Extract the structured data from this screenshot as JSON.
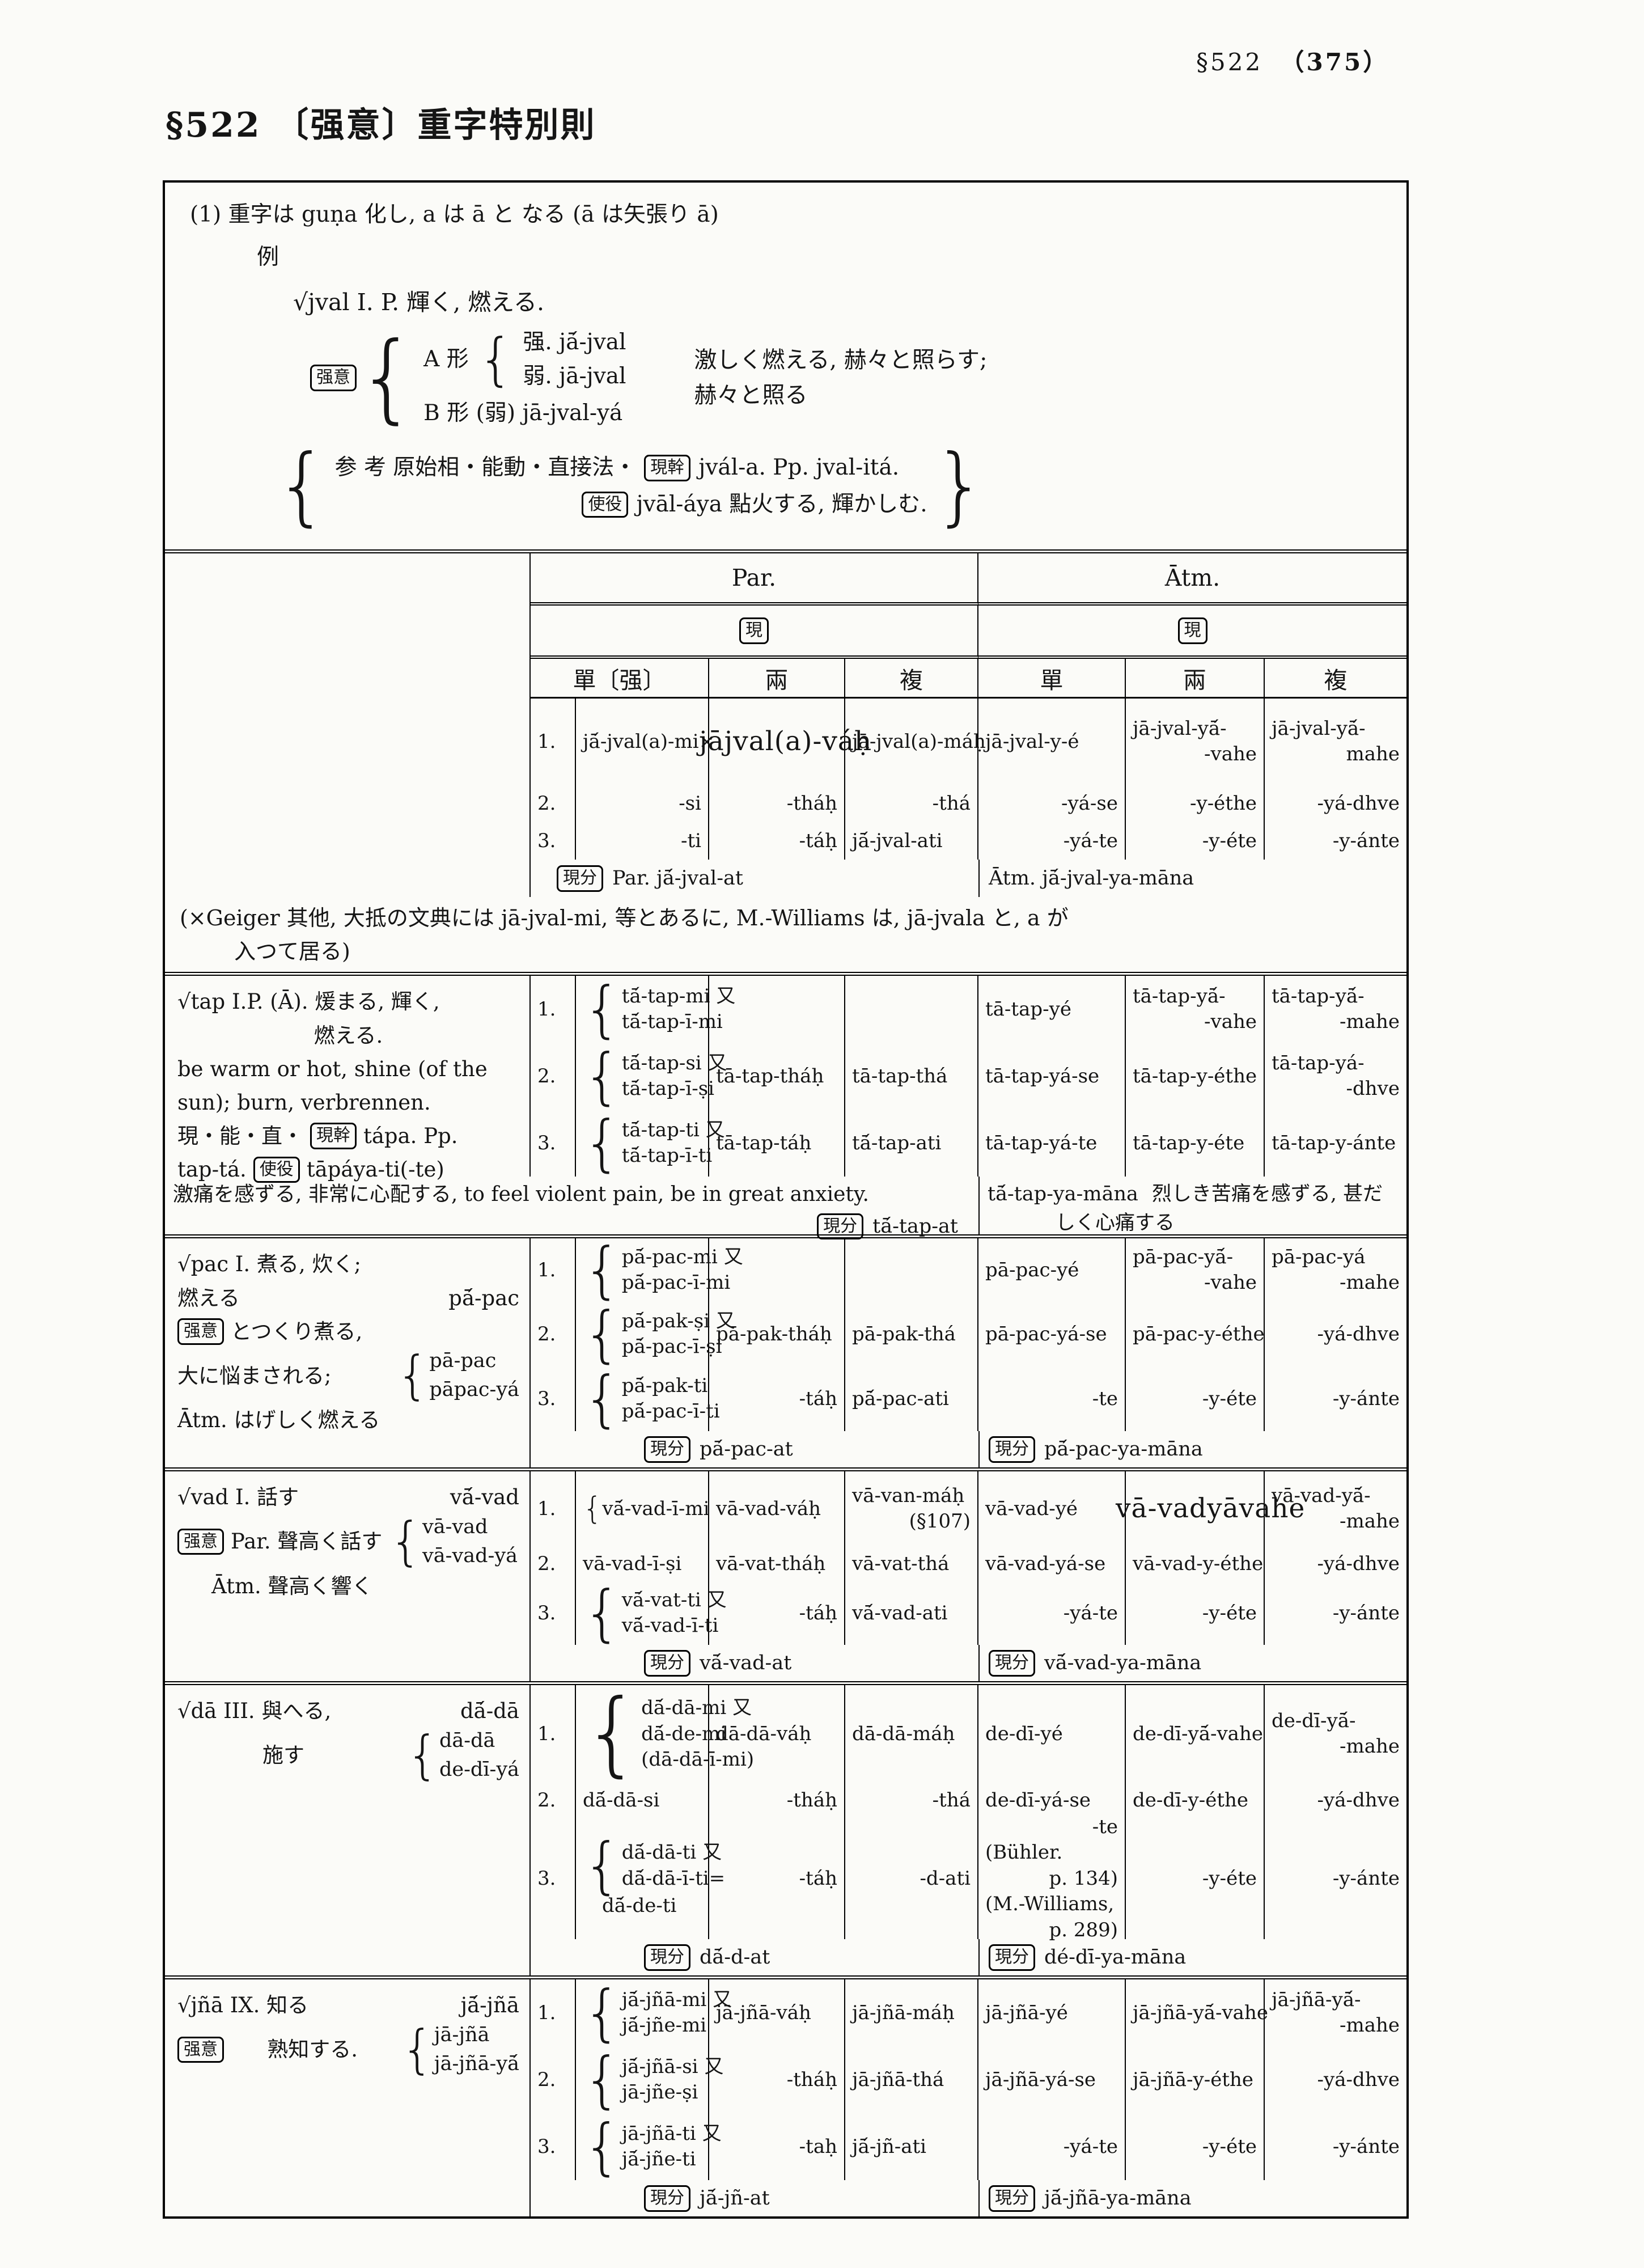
{
  "page": {
    "header_sec": "§522",
    "header_page": "（375）",
    "title": "§522 〔强意〕重字特別則"
  },
  "intro": {
    "line1": "(1) 重字は guṇa 化し, a は ā と なる (ā は矢張り ā)",
    "rei": "例",
    "jval_line": "√jval I. P. 輝く, 燃える.",
    "kyoi": "强意",
    "a_label": "A 形",
    "a_strong": "强. jā́-jval",
    "a_weak": "弱. jā-jval",
    "b_line": "B 形 (弱) jā-jval-yá",
    "desc1": "激しく燃える, 赫々と照らす;",
    "desc2": "赫々と照る",
    "sanko": "参 考 原始相・能動・直接法・",
    "genkan": "現幹",
    "genkan_text": "jvál-a. Pp. jval-itá.",
    "shieki": "使役",
    "shieki_text": "jvāl-áya 點火する, 輝かしむ."
  },
  "table": {
    "headers": {
      "par": "Par.",
      "atm": "Ātm.",
      "tense": "現",
      "cols": [
        "單〔强〕",
        "兩",
        "複",
        "單",
        "兩",
        "複"
      ]
    },
    "blocks": [
      {
        "id": "jval",
        "left": [],
        "rows": [
          {
            "num": "1.",
            "cells": [
              "jā́-jval(a)-mi×",
              {
                "big": "jājval(a)-váḥ"
              },
              "jā-jval(a)-máḥ",
              "jā-jval-y-é",
              [
                "jā-jval-yā́-",
                "-vahe"
              ],
              [
                "jā-jval-yā́-",
                [
                  "R",
                  "mahe"
                ]
              ]
            ]
          },
          {
            "num": "2.",
            "cells": [
              "-si",
              "-tháḥ",
              "-thá",
              "-yá-se",
              "-y-éthe",
              "-yá-dhve"
            ]
          },
          {
            "num": "3.",
            "cells": [
              "-ti",
              "-táḥ",
              "jā́-jval-ati",
              "-yá-te",
              "-y-éte",
              "-y-ánte"
            ]
          }
        ],
        "footer": {
          "box": "現分",
          "par": "Par. jā́-jval-at",
          "atm": "Ātm. jā́-jval-ya-māna"
        },
        "note": [
          "(×Geiger 其他, 大抵の文典には jā-jval-mi, 等とあるに, M.-Williams は, jā-jvala と, a が",
          "入つて居る)"
        ]
      },
      {
        "id": "tap",
        "left": [
          {
            "segs": [
              "√tap I.P. (Ā). 煖まる, 輝く,"
            ]
          },
          {
            "segs": [
              "燃える."
            ],
            "center": true
          },
          {
            "segs": [
              "be warm or hot, shine (of the"
            ]
          },
          {
            "segs": [
              "sun); burn, verbrennen."
            ]
          },
          {
            "segs": [
              "現・能・直・",
              {
                "box": "現幹"
              },
              " tápa. Pp."
            ]
          },
          {
            "segs": [
              "tap-tá. ",
              {
                "box": "使役"
              },
              " tāpáya-ti(-te)"
            ]
          }
        ],
        "rows": [
          {
            "num": "1.",
            "cells": [
              {
                "brace": [
                  "tā́-tap-mi 又",
                  "tā́-tap-ī-mi"
                ]
              },
              "",
              "",
              "tā-tap-yé",
              [
                "tā-tap-yā́-",
                "-vahe"
              ],
              [
                "tā-tap-yā́-",
                "-mahe"
              ]
            ]
          },
          {
            "num": "2.",
            "cells": [
              {
                "brace": [
                  "tā́-tap-si 又",
                  "tā́-tap-ī-ṣi"
                ]
              },
              "tā-tap-tháḥ",
              "tā-tap-thá",
              "tā-tap-yá-se",
              "tā-tap-y-éthe",
              [
                "tā-tap-yá-",
                "-dhve"
              ]
            ]
          },
          {
            "num": "3.",
            "cells": [
              {
                "brace": [
                  "tā́-tap-ti 又",
                  "tā́-tap-ī-ti"
                ]
              },
              "tā-tap-táḥ",
              "tā́-tap-ati",
              "tā-tap-yá-te",
              "tā-tap-y-éte",
              "tā-tap-y-ánte"
            ]
          }
        ],
        "footer": {
          "wide_left": "激痛を感ずる, 非常に心配する, to feel violent pain, be in great anxiety.",
          "box": "現分",
          "par": "tā́-tap-at",
          "atm": "tā́-tap-ya-māna",
          "atm_note": [
            "烈しき苦痛を感ずる, 甚だ",
            "しく心痛する"
          ]
        }
      },
      {
        "id": "pac",
        "left": [
          {
            "segs": [
              "√pac I. 煮る, 炊く;"
            ]
          },
          {
            "segs": [
              "燃える",
              "pā́-pac"
            ],
            "spread": true
          },
          {
            "segs": [
              {
                "box": "强意"
              },
              "とつくり煮る,"
            ]
          },
          {
            "segs": [
              "大に悩まされる;",
              {
                "pair": [
                  "pā-pac",
                  "pāpac-yá"
                ]
              }
            ],
            "spread": true
          },
          {
            "segs": [
              "Ātm. はげしく燃える"
            ]
          }
        ],
        "rows": [
          {
            "num": "1.",
            "cells": [
              {
                "brace": [
                  "pā́-pac-mi 又",
                  "pā́-pac-ī-mi"
                ]
              },
              "",
              "",
              "pā-pac-yé",
              [
                "pā-pac-yā́-",
                "-vahe"
              ],
              [
                "pā-pac-yá",
                [
                  "R",
                  "-mahe"
                ]
              ]
            ]
          },
          {
            "num": "2.",
            "cells": [
              {
                "brace": [
                  "pā́-pak-ṣi 又",
                  "pā́-pac-ī-ṣi"
                ]
              },
              "pā-pak-tháḥ",
              "pā-pak-thá",
              "pā-pac-yá-se",
              "pā-pac-y-éthe",
              "-yá-dhve"
            ]
          },
          {
            "num": "3.",
            "cells": [
              {
                "brace": [
                  "pā́-pak-ti",
                  "pā́-pac-ī-ti"
                ]
              },
              "-táḥ",
              "pā́-pac-ati",
              "-te",
              "-y-éte",
              "-y-ánte"
            ]
          }
        ],
        "footer": {
          "box": "現分",
          "par": "pā́-pac-at",
          "box2": "現分",
          "atm": "pā́-pac-ya-māna"
        }
      },
      {
        "id": "vad",
        "left": [
          {
            "segs": [
              "√vad I. 話す",
              "vā́-vad"
            ],
            "spread": true
          },
          {
            "segs": [
              {
                "box": "强意"
              },
              " Par. 聲高く話す",
              {
                "pair": [
                  "vā-vad",
                  "vā-vad-yá"
                ]
              }
            ]
          },
          {
            "segs": [
              "Ātm. 聲高く響く"
            ],
            "indent": 60
          }
        ],
        "rows": [
          {
            "num": "1.",
            "cells": [
              {
                "brace": [
                  "vā́-vad-ī-mi"
                ]
              },
              "vā-vad-váḥ",
              [
                "vā-van-máḥ",
                [
                  "R",
                  "(§107)"
                ]
              ],
              "vā-vad-yé",
              {
                "big": "vā-vadyāvahe"
              },
              [
                "vā-vad-yā́-",
                [
                  "R",
                  "-mahe"
                ]
              ]
            ]
          },
          {
            "num": "2.",
            "cells": [
              "vā-vad-ī-ṣi",
              "vā-vat-tháḥ",
              "vā-vat-thá",
              "vā-vad-yá-se",
              "vā-vad-y-éthe",
              "-yá-dhve"
            ]
          },
          {
            "num": "3.",
            "cells": [
              {
                "brace": [
                  "vā́-vat-ti 又",
                  "vā́-vad-ī-ti"
                ]
              },
              "-táḥ",
              "vā́-vad-ati",
              "-yá-te",
              "-y-éte",
              "-y-ánte"
            ]
          }
        ],
        "footer": {
          "box": "現分",
          "par": "vā́-vad-at",
          "box2": "現分",
          "atm": "vā́-vad-ya-māna"
        }
      },
      {
        "id": "da",
        "left": [
          {
            "segs": [
              "√dā III. 與へる,",
              "dā́-dā"
            ],
            "spread": true
          },
          {
            "segs": [
              "施す",
              {
                "pair": [
                  "dā-dā",
                  "de-dī-yá"
                ]
              }
            ],
            "indent": 150,
            "spread": true
          }
        ],
        "rows": [
          {
            "num": "1.",
            "cells": [
              {
                "brace": [
                  "dā́-dā-mi 又",
                  "dā́-de-mi",
                  "(dā-dā-ī-mi)"
                ]
              },
              "dā-dā-váḥ",
              "dā-dā-máḥ",
              "de-dī-yé",
              "de-dī-yā́-vahe",
              [
                "de-dī-yā́-",
                [
                  "R",
                  "-mahe"
                ]
              ]
            ]
          },
          {
            "num": "2.",
            "cells": [
              "dā́-dā-si",
              "-tháḥ",
              "-thá",
              "de-dī-yá-se",
              "de-dī-y-éthe",
              "-yá-dhve"
            ]
          },
          {
            "num": "3.",
            "cells": [
              {
                "brace": [
                  "dā́-dā-ti 又",
                  "dā́-dā-ī-ti="
                ],
                "after": [
                  "dā́-de-ti"
                ]
              },
              "-táḥ",
              "-d-ati",
              [
                "-te",
                "(Bühler.",
                [
                  "R",
                  "p. 134)"
                ],
                "(M.-Williams,",
                [
                  "R",
                  "p. 289)"
                ]
              ],
              "-y-éte",
              "-y-ánte"
            ]
          }
        ],
        "footer": {
          "box": "現分",
          "par": "dā́-d-at",
          "box2": "現分",
          "atm": "dé-dī-ya-māna"
        }
      },
      {
        "id": "jna",
        "left": [
          {
            "segs": [
              "√jñā IX. 知る",
              "jā́-jñā"
            ],
            "spread": true
          },
          {
            "segs": [
              {
                "box": "强意"
              },
              "熟知する.",
              {
                "pair": [
                  "jā-jñā",
                  "jā-jñā-yā́"
                ]
              }
            ],
            "spread": true
          }
        ],
        "rows": [
          {
            "num": "1.",
            "cells": [
              {
                "brace": [
                  "jā́-jñā-mi 又",
                  "jā́-jñe-mi"
                ]
              },
              "jā-jñā-váḥ",
              "jā-jñā-máḥ",
              "jā-jñā-yé",
              "jā-jñā-yā́-vahe",
              [
                "jā-jñā-yā́-",
                [
                  "R",
                  "-mahe"
                ]
              ]
            ]
          },
          {
            "num": "2.",
            "cells": [
              {
                "brace": [
                  "jā́-jñā-si 又",
                  "jā-jñe-ṣi"
                ]
              },
              "-tháḥ",
              "jā-jñā-thá",
              "jā-jñā-yá-se",
              "jā-jñā-y-éthe",
              "-yá-dhve"
            ]
          },
          {
            "num": "3.",
            "cells": [
              {
                "brace": [
                  "jā-jñā-ti 又",
                  "jā́-jñe-ti"
                ]
              },
              "-taḥ",
              "jā́-jñ-ati",
              "-yá-te",
              "-y-éte",
              "-y-ánte"
            ]
          }
        ],
        "footer": {
          "box": "現分",
          "par": "jā́-jñ-at",
          "box2": "現分",
          "atm": "jā́-jñā-ya-māna"
        }
      }
    ]
  }
}
